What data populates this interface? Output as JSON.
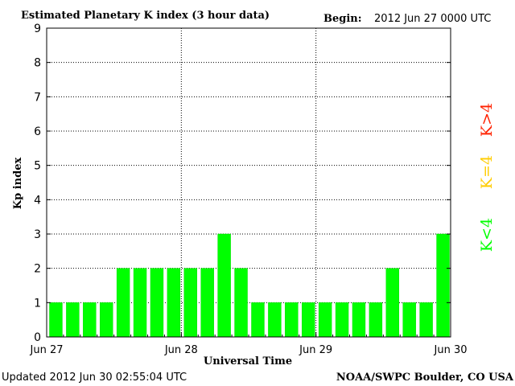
{
  "header": {
    "title": "Estimated Planetary K index (3 hour data)",
    "begin_label": "Begin:",
    "begin_value": "2012 Jun 27 0000 UTC"
  },
  "footer": {
    "updated": "Updated 2012 Jun 30 02:55:04 UTC",
    "credit": "NOAA/SWPC Boulder, CO USA"
  },
  "legend": {
    "items": [
      {
        "label": "K<4",
        "color": "#00ff00"
      },
      {
        "label": "K=4",
        "color": "#ffcc00"
      },
      {
        "label": "K>4",
        "color": "#ff2200"
      }
    ]
  },
  "chart_data": {
    "type": "bar",
    "title": "Estimated Planetary K index (3 hour data)",
    "xlabel": "Universal Time",
    "ylabel": "Kp index",
    "ylim": [
      0,
      9
    ],
    "yticks": [
      0,
      1,
      2,
      3,
      4,
      5,
      6,
      7,
      8,
      9
    ],
    "x_tick_labels": [
      "Jun 27",
      "Jun 28",
      "Jun 29",
      "Jun 30"
    ],
    "grid": true,
    "bar_color": "#00ff00",
    "values": [
      1,
      1,
      1,
      1,
      2,
      2,
      2,
      2,
      2,
      2,
      3,
      2,
      1,
      1,
      1,
      1,
      1,
      1,
      1,
      1,
      2,
      1,
      1,
      3
    ]
  }
}
